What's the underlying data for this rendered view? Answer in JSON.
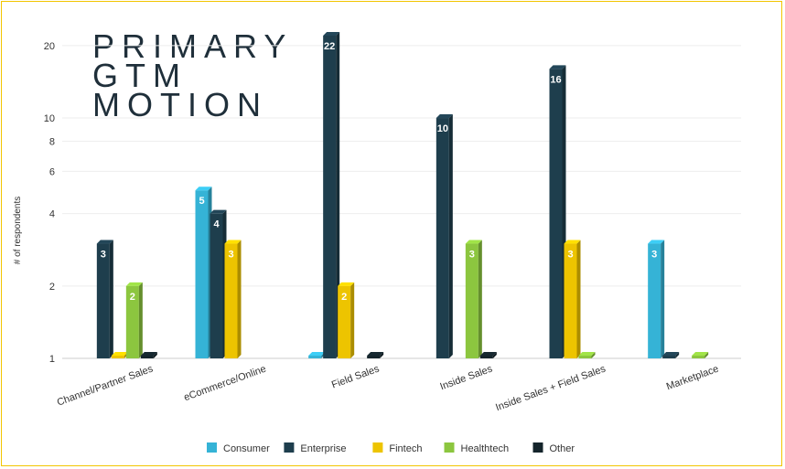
{
  "chart_data": {
    "type": "bar",
    "title_lines": [
      "PRIMARY",
      "GTM",
      "MOTION"
    ],
    "ylabel": "# of respondents",
    "xlabel": "",
    "yscale": "log",
    "ylim": [
      1,
      22
    ],
    "yticks": [
      1,
      2,
      4,
      6,
      8,
      10,
      20
    ],
    "grid": true,
    "legend_position": "bottom",
    "categories": [
      "Channel/Partner Sales",
      "eCommerce/Online",
      "Field Sales",
      "Inside Sales",
      "Inside Sales + Field Sales",
      "Marketplace"
    ],
    "series": [
      {
        "name": "Consumer",
        "color": "#35b3d6",
        "values": [
          null,
          5,
          1,
          null,
          null,
          3
        ]
      },
      {
        "name": "Enterprise",
        "color": "#1e3e4d",
        "values": [
          3,
          4,
          22,
          10,
          16,
          1
        ]
      },
      {
        "name": "Fintech",
        "color": "#edc400",
        "values": [
          1,
          3,
          2,
          null,
          3,
          null
        ]
      },
      {
        "name": "Healthtech",
        "color": "#8cc63f",
        "values": [
          2,
          null,
          null,
          3,
          1,
          1
        ]
      },
      {
        "name": "Other",
        "color": "#14242b",
        "values": [
          1,
          null,
          1,
          1,
          null,
          null
        ]
      }
    ]
  }
}
